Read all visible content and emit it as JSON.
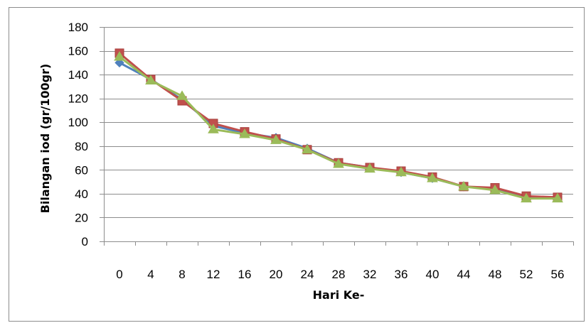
{
  "chart_data": {
    "type": "line",
    "title": "",
    "xlabel": "Hari Ke-",
    "ylabel": "Bilangan iod (gr/100gr)",
    "categories": [
      0,
      4,
      8,
      12,
      16,
      20,
      24,
      28,
      32,
      36,
      40,
      44,
      48,
      52,
      56
    ],
    "yticks": [
      0,
      20,
      40,
      60,
      80,
      100,
      120,
      140,
      160,
      180
    ],
    "ylim": [
      0,
      180
    ],
    "grid": true,
    "series": [
      {
        "color": "#4F81BD",
        "marker": "diamond",
        "values": [
          150,
          136,
          119,
          97,
          91,
          87,
          78,
          66,
          62,
          58,
          53,
          46,
          44,
          37,
          37
        ]
      },
      {
        "color": "#C0504D",
        "marker": "square",
        "values": [
          158,
          136,
          118,
          99,
          92,
          86,
          77,
          66,
          62,
          59,
          54,
          46,
          45,
          38,
          37
        ]
      },
      {
        "color": "#9BBB59",
        "marker": "triangle",
        "values": [
          155,
          135,
          122,
          94,
          90,
          85,
          77,
          65,
          61,
          58,
          53,
          46,
          43,
          36,
          36
        ]
      }
    ]
  }
}
